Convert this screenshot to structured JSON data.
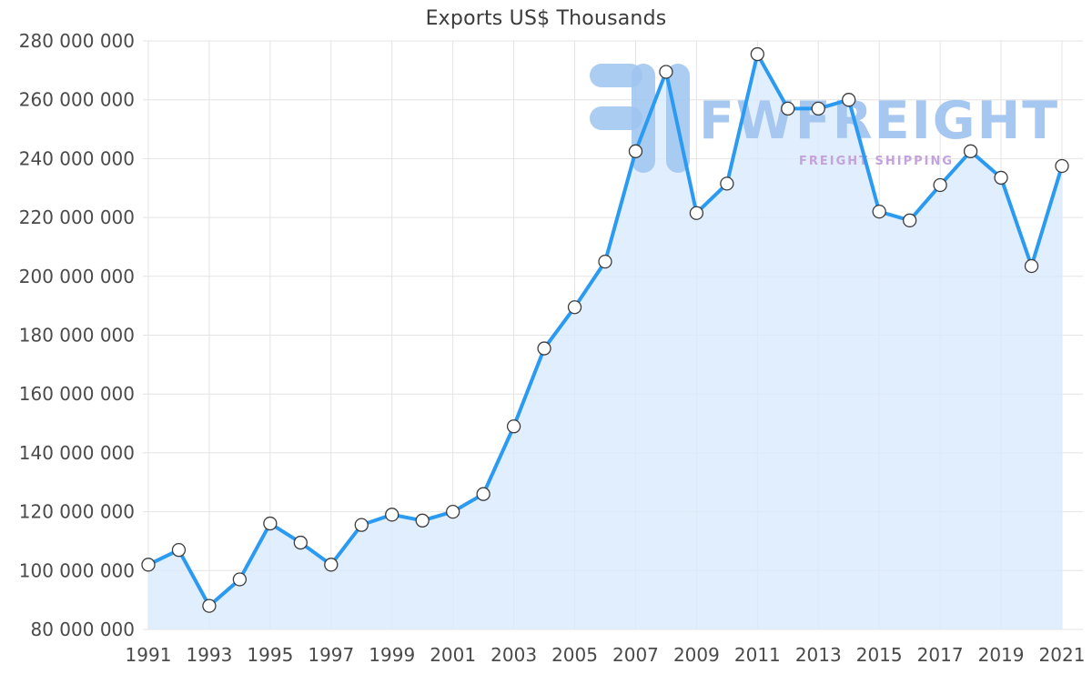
{
  "chart_data": {
    "type": "line",
    "title": "Exports US$ Thousands",
    "x": [
      1991,
      1992,
      1993,
      1994,
      1995,
      1996,
      1997,
      1998,
      1999,
      2000,
      2001,
      2002,
      2003,
      2004,
      2005,
      2006,
      2007,
      2008,
      2009,
      2010,
      2011,
      2012,
      2013,
      2014,
      2015,
      2016,
      2017,
      2018,
      2019,
      2020,
      2021
    ],
    "values": [
      102000000,
      107000000,
      88000000,
      97000000,
      116000000,
      109500000,
      102000000,
      115500000,
      119000000,
      117000000,
      120000000,
      126000000,
      149000000,
      175500000,
      189500000,
      205000000,
      242500000,
      269500000,
      221500000,
      231500000,
      275500000,
      257000000,
      257000000,
      260000000,
      222000000,
      219000000,
      231000000,
      242500000,
      233500000,
      203500000,
      237500000
    ],
    "x_tick_labels": [
      "1991",
      "1993",
      "1995",
      "1997",
      "1999",
      "2001",
      "2003",
      "2005",
      "2007",
      "2009",
      "2011",
      "2013",
      "2015",
      "2017",
      "2019",
      "2021"
    ],
    "y_ticks": [
      80000000,
      100000000,
      120000000,
      140000000,
      160000000,
      180000000,
      200000000,
      220000000,
      240000000,
      260000000,
      280000000
    ],
    "y_tick_labels": [
      "80 000 000",
      "100 000 000",
      "120 000 000",
      "140 000 000",
      "160 000 000",
      "180 000 000",
      "200 000 000",
      "220 000 000",
      "240 000 000",
      "260 000 000",
      "280 000 000"
    ],
    "ylim": [
      80000000,
      280000000
    ],
    "grid": true,
    "area_fill": true,
    "legend": "none",
    "colors": {
      "line": "#2b9af3",
      "area": "#d9eafc",
      "marker_fill": "#ffffff",
      "marker_stroke": "#3c3c3c",
      "grid": "#e4e4e4",
      "tick_text": "#4a4a4a",
      "title_text": "#3b3b3b"
    }
  },
  "watermark": {
    "title": "FWFREIGHT",
    "subtitle": "FREIGHT SHIPPING",
    "logo_color": "#9dc4f0",
    "title_color": "#a6c7f0",
    "subtitle_color": "#c4a3dd"
  }
}
